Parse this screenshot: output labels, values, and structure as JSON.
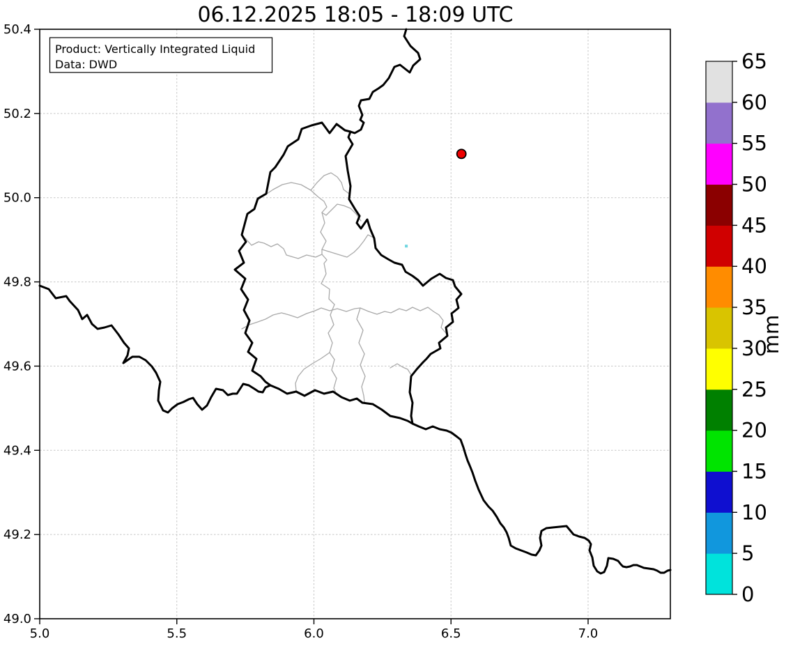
{
  "title": "06.12.2025 18:05 - 18:09 UTC",
  "info_box": {
    "lines": [
      "Product: Vertically Integrated Liquid",
      "Data: DWD"
    ]
  },
  "chart_data": {
    "type": "map",
    "title": "06.12.2025 18:05 - 18:09 UTC",
    "x_axis": {
      "label": "",
      "range": [
        5.0,
        7.3
      ],
      "ticks": [
        5.0,
        5.5,
        6.0,
        6.5,
        7.0
      ],
      "tick_labels": [
        "5.0",
        "5.5",
        "6.0",
        "6.5",
        "7.0"
      ]
    },
    "y_axis": {
      "label": "",
      "range": [
        49.0,
        50.4
      ],
      "ticks": [
        49.0,
        49.2,
        49.4,
        49.6,
        49.8,
        50.0,
        50.2,
        50.4
      ],
      "tick_labels": [
        "49.0",
        "49.2",
        "49.4",
        "49.6",
        "49.8",
        "50.0",
        "50.2",
        "50.4"
      ]
    },
    "grid": true,
    "colorbar": {
      "label": "mm",
      "min": 0,
      "max": 65,
      "tick_step": 5,
      "ticks": [
        0,
        5,
        10,
        15,
        20,
        25,
        30,
        35,
        40,
        45,
        50,
        55,
        60,
        65
      ],
      "band_colors_bottom_to_top": [
        "#00e3dc",
        "#1197dd",
        "#0f0fd0",
        "#00e400",
        "#008000",
        "#ffff00",
        "#d9c400",
        "#ff8c00",
        "#d00000",
        "#8b0000",
        "#ff00ff",
        "#9271cd",
        "#e1e1e1"
      ]
    },
    "points": [
      {
        "name": "radar-site-marker",
        "lon": 6.538,
        "lat": 50.104,
        "marker": "circle",
        "fill": "#ee0000",
        "edge": "#000000"
      },
      {
        "name": "precipitation-echo",
        "lon": 6.337,
        "lat": 49.885,
        "marker": "pixel",
        "value_band_mm": "0-5",
        "fill": "#6fd6e0"
      }
    ],
    "map_layers": [
      "national borders (black): Belgium, Germany, France, Luxembourg",
      "Luxembourg canton borders (gray)"
    ]
  }
}
